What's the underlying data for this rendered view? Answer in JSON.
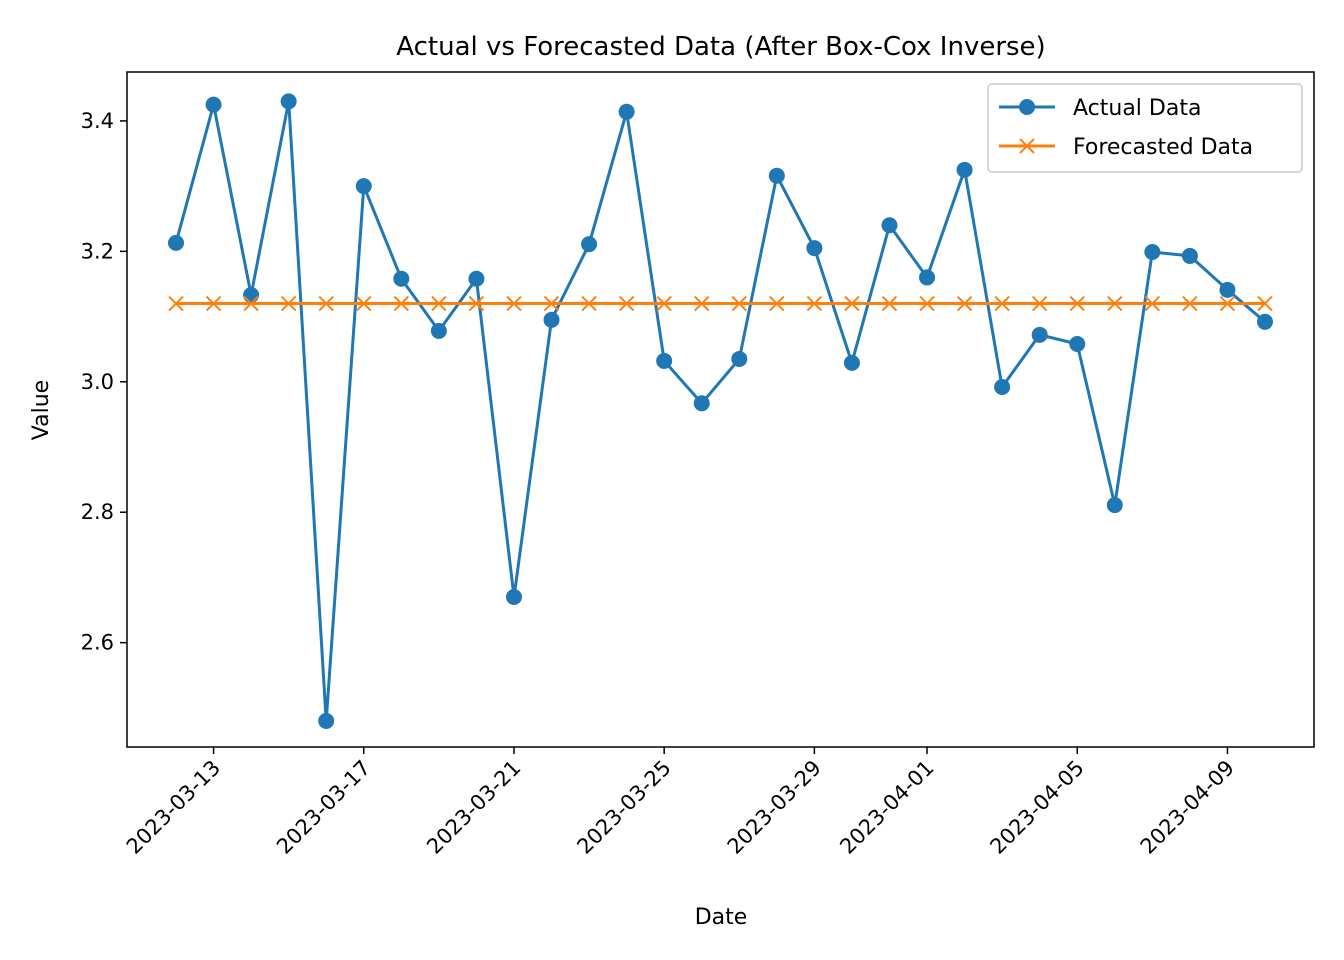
{
  "chart_data": {
    "type": "line",
    "title": "Actual vs Forecasted Data (After Box-Cox Inverse)",
    "xlabel": "Date",
    "ylabel": "Value",
    "x": [
      "2023-03-12",
      "2023-03-13",
      "2023-03-14",
      "2023-03-15",
      "2023-03-16",
      "2023-03-17",
      "2023-03-18",
      "2023-03-19",
      "2023-03-20",
      "2023-03-21",
      "2023-03-22",
      "2023-03-23",
      "2023-03-24",
      "2023-03-25",
      "2023-03-26",
      "2023-03-27",
      "2023-03-28",
      "2023-03-29",
      "2023-03-30",
      "2023-03-31",
      "2023-04-01",
      "2023-04-02",
      "2023-04-03",
      "2023-04-04",
      "2023-04-05",
      "2023-04-06",
      "2023-04-07",
      "2023-04-08",
      "2023-04-09",
      "2023-04-10"
    ],
    "xticks": [
      "2023-03-13",
      "2023-03-17",
      "2023-03-21",
      "2023-03-25",
      "2023-03-29",
      "2023-04-01",
      "2023-04-05",
      "2023-04-09"
    ],
    "yticks": [
      "2.6",
      "2.8",
      "3.0",
      "3.2",
      "3.4"
    ],
    "ylim": [
      2.44,
      3.475
    ],
    "grid": false,
    "legend_position": "top-right",
    "series": [
      {
        "name": "Actual Data",
        "color": "#1f77b4",
        "marker": "circle",
        "values": [
          3.213,
          3.425,
          3.133,
          3.43,
          2.48,
          3.3,
          3.158,
          3.078,
          3.158,
          2.67,
          3.095,
          3.211,
          3.414,
          3.032,
          2.967,
          3.035,
          3.316,
          3.205,
          3.029,
          3.24,
          3.16,
          3.325,
          2.992,
          3.072,
          3.058,
          2.811,
          3.199,
          3.193,
          3.141,
          3.092
        ]
      },
      {
        "name": "Forecasted Data",
        "color": "#ff7f0e",
        "marker": "x",
        "values": [
          3.12,
          3.12,
          3.12,
          3.12,
          3.12,
          3.12,
          3.12,
          3.12,
          3.12,
          3.12,
          3.12,
          3.12,
          3.12,
          3.12,
          3.12,
          3.12,
          3.12,
          3.12,
          3.12,
          3.12,
          3.12,
          3.12,
          3.12,
          3.12,
          3.12,
          3.12,
          3.12,
          3.12,
          3.12,
          3.12
        ]
      }
    ]
  }
}
